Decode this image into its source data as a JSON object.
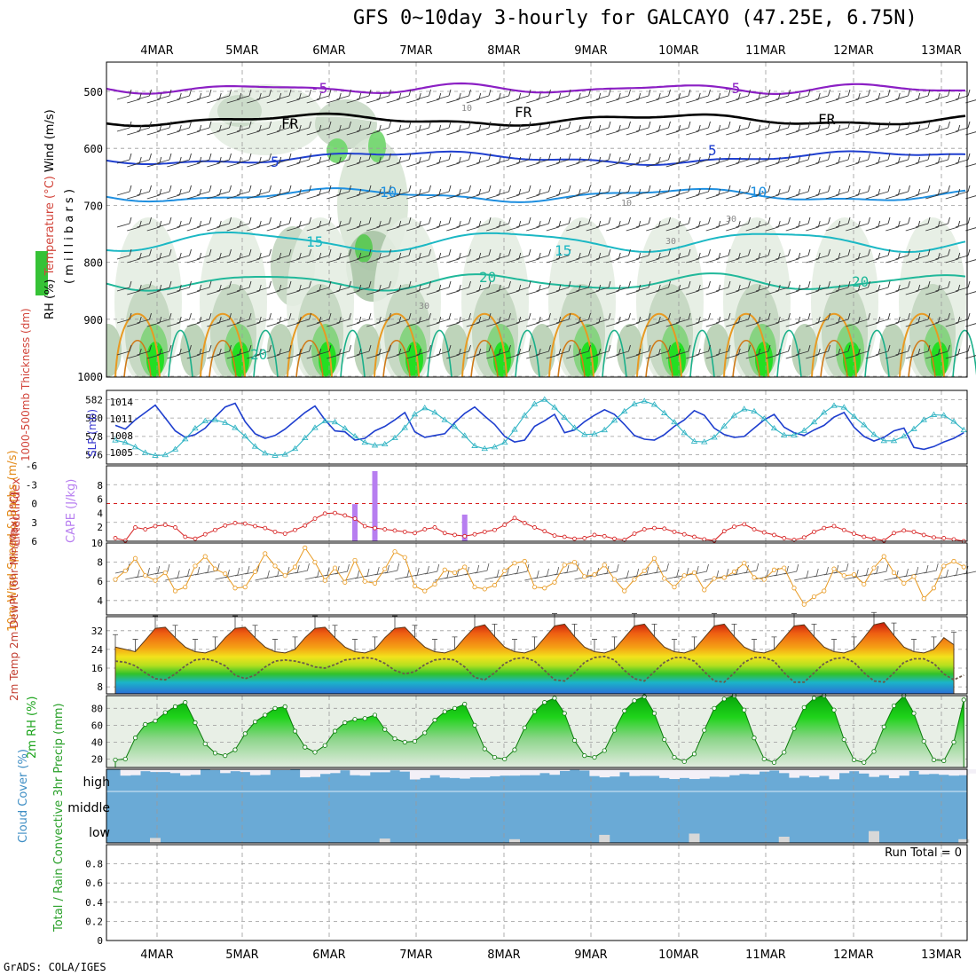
{
  "title": "GFS 0~10day 3-hourly for GALCAYO (47.25E, 6.75N)",
  "credit": "GrADS: COLA/IGES",
  "dates": [
    "4MAR",
    "5MAR",
    "6MAR",
    "7MAR",
    "8MAR",
    "9MAR",
    "10MAR",
    "11MAR",
    "12MAR",
    "13MAR"
  ],
  "colors": {
    "grid": "#9a9a9a",
    "purple": "#8b1fc4",
    "blue": "#1f3fcf",
    "cyan": "#2fb3c3",
    "orange": "#e89a22",
    "green": "#22c21f",
    "red": "#d62020",
    "cloud": "#6aaad6"
  },
  "panels": {
    "upper": {
      "ylabel_mb": "( m i l l i b a r s )",
      "label_wind": "Wind (m/s)",
      "label_temp": "Temperature (°C)",
      "label_rh": "RH (%)",
      "yticks": [
        "500",
        "600",
        "700",
        "800",
        "900",
        "1000"
      ],
      "contour_labels": {
        "t500": "-5",
        "t600": "5",
        "t700": "10",
        "t800": "15",
        "t850": "20",
        "t950": "20",
        "fr": "FR",
        "rh1": "10",
        "rh2": "30"
      }
    },
    "slp": {
      "label_thk": "1000-500mb Thickness (dm)",
      "label_slp": "SLP (mb)",
      "thk_ticks": [
        "582",
        "580",
        "578",
        "576"
      ],
      "slp_ticks": [
        "1014",
        "1011",
        "1008",
        "1005"
      ]
    },
    "cape": {
      "label_li": "Lifted Index",
      "label_cape": "CAPE (J/kg)",
      "li_ticks": [
        "-6",
        "-3",
        "0",
        "3",
        "6"
      ],
      "cape_ticks": [
        "8",
        "6",
        "4",
        "2"
      ]
    },
    "wind": {
      "label": "10m Wind Speed & Barbs (m/s)",
      "yticks": [
        "10",
        "8",
        "6",
        "4"
      ]
    },
    "temp": {
      "label": "2m Temp 2m DewPt (6hr Min/Max) (°C)",
      "yticks": [
        "32",
        "24",
        "16",
        "8"
      ]
    },
    "rh": {
      "label": "2m RH (%)",
      "yticks": [
        "80",
        "60",
        "40",
        "20"
      ]
    },
    "cloud": {
      "label": "Cloud Cover (%)",
      "levels": [
        "high",
        "middle",
        "low"
      ]
    },
    "precip": {
      "label": "Total / Rain Convective 3hr Precip (mm)",
      "run_total": "Run Total = 0",
      "yticks": [
        "0.8",
        "0.6",
        "0.4",
        "0.2",
        "0"
      ]
    }
  },
  "chart_data": [
    {
      "type": "line",
      "title": "1000-500mb Thickness (dm)",
      "ylim": [
        575,
        583
      ],
      "x_start": "3MAR 15Z",
      "x_step_hours": 3,
      "values": [
        579.2,
        578.8,
        579.8,
        580.6,
        581.4,
        580.0,
        578.6,
        577.9,
        578.2,
        578.9,
        580.1,
        581.2,
        581.6,
        579.6,
        578.3,
        577.8,
        578.1,
        578.8,
        579.7,
        580.6,
        581.3,
        579.8,
        578.6,
        578.5,
        577.6,
        577.8,
        578.6,
        579.1,
        579.8,
        580.6,
        578.5,
        577.9,
        578.1,
        578.3,
        579.5,
        580.5,
        581.2,
        580.2,
        579.3,
        578.0,
        577.4,
        577.6,
        579.1,
        579.7,
        580.4,
        578.4,
        578.7,
        579.6,
        580.3,
        580.9,
        580.4,
        579.3,
        578.1,
        577.7,
        577.6,
        578.2,
        579.1,
        579.8,
        580.8,
        580.3,
        578.9,
        578.2,
        577.9,
        578.0,
        578.9,
        579.8,
        580.4,
        579.0,
        578.4,
        578.1,
        578.7,
        579.2,
        580.1,
        580.6,
        579.0,
        578.0,
        577.5,
        577.9,
        578.6,
        578.9,
        576.8,
        576.6,
        576.9,
        577.4,
        577.8,
        578.4
      ]
    },
    {
      "type": "line",
      "title": "SLP (mb)",
      "ylim": [
        1003,
        1016
      ],
      "values": [
        1007.2,
        1006.8,
        1006.0,
        1005.0,
        1004.5,
        1004.6,
        1005.6,
        1007.4,
        1009.3,
        1010.6,
        1010.8,
        1010.3,
        1009.4,
        1007.9,
        1006.1,
        1004.9,
        1004.5,
        1004.7,
        1005.7,
        1007.6,
        1009.4,
        1010.6,
        1010.4,
        1009.3,
        1007.9,
        1006.8,
        1006.3,
        1006.5,
        1007.6,
        1009.4,
        1011.8,
        1012.9,
        1012.1,
        1010.8,
        1009.6,
        1008.0,
        1006.2,
        1005.7,
        1006.0,
        1006.8,
        1009.1,
        1011.6,
        1013.6,
        1014.4,
        1013.0,
        1011.2,
        1009.4,
        1008.2,
        1008.3,
        1009.0,
        1010.7,
        1012.3,
        1013.6,
        1014.1,
        1013.5,
        1012.0,
        1010.4,
        1008.5,
        1007.0,
        1006.9,
        1007.7,
        1009.7,
        1011.6,
        1012.7,
        1012.3,
        1011.0,
        1009.3,
        1008.1,
        1008.1,
        1008.9,
        1010.4,
        1012.1,
        1013.3,
        1013.0,
        1011.4,
        1009.9,
        1008.2,
        1007.1,
        1007.1,
        1007.9,
        1009.2,
        1010.8,
        1011.7,
        1011.6,
        1010.5,
        1009.0
      ]
    },
    {
      "type": "line",
      "title": "Lifted Index",
      "ylim": [
        6,
        -6
      ],
      "values": [
        5.5,
        5.9,
        3.8,
        4.1,
        3.6,
        3.4,
        3.8,
        5.3,
        5.6,
        4.9,
        4.2,
        3.5,
        3.1,
        3.2,
        3.6,
        3.9,
        4.5,
        4.8,
        4.2,
        3.5,
        2.4,
        1.6,
        1.5,
        1.9,
        2.4,
        3.6,
        3.9,
        4.1,
        4.3,
        4.5,
        4.7,
        4.1,
        3.8,
        4.7,
        5.0,
        5.2,
        4.9,
        4.5,
        4.2,
        3.4,
        2.3,
        3.1,
        3.8,
        4.4,
        5.1,
        5.3,
        5.6,
        5.5,
        5.0,
        5.2,
        5.6,
        5.8,
        4.8,
        4.1,
        3.9,
        4.0,
        4.5,
        4.9,
        5.3,
        5.7,
        5.9,
        4.4,
        3.7,
        3.3,
        4.1,
        4.6,
        5.0,
        5.5,
        5.8,
        5.4,
        4.5,
        3.9,
        3.6,
        4.2,
        4.8,
        5.3,
        5.6,
        5.9,
        4.7,
        4.3,
        4.5,
        5.0,
        5.4,
        5.5,
        5.7,
        6.0
      ]
    },
    {
      "type": "bar",
      "title": "CAPE (J/kg)",
      "ylim": [
        0,
        10
      ],
      "bars": [
        {
          "index": 24,
          "value": 5.3
        },
        {
          "index": 26,
          "value": 10.0
        },
        {
          "index": 35,
          "value": 3.8
        }
      ]
    },
    {
      "type": "line",
      "title": "10m Wind Speed (m/s)",
      "ylim": [
        2.5,
        10
      ],
      "values": [
        6.2,
        7.1,
        8.4,
        6.6,
        6.1,
        6.9,
        5.0,
        5.4,
        7.6,
        8.6,
        7.3,
        6.8,
        5.3,
        5.4,
        7.0,
        8.9,
        7.6,
        6.6,
        7.5,
        9.5,
        8.0,
        6.1,
        7.4,
        5.9,
        8.2,
        6.0,
        5.8,
        7.3,
        9.1,
        8.5,
        5.5,
        5.0,
        5.7,
        7.2,
        6.9,
        7.5,
        5.4,
        5.2,
        5.6,
        7.1,
        7.9,
        8.1,
        5.4,
        5.3,
        5.9,
        7.7,
        8.0,
        6.5,
        6.7,
        7.7,
        6.2,
        5.0,
        6.2,
        7.1,
        8.4,
        6.3,
        5.4,
        6.6,
        6.9,
        5.1,
        6.3,
        6.4,
        7.0,
        7.9,
        6.4,
        6.2,
        7.2,
        7.4,
        5.3,
        3.6,
        4.4,
        5.0,
        7.3,
        6.6,
        6.7,
        5.7,
        7.4,
        8.6,
        6.9,
        5.8,
        6.5,
        4.2,
        5.3,
        7.6,
        8.1,
        7.5
      ]
    },
    {
      "type": "area",
      "title": "2m Temp (°C)",
      "ylim": [
        5,
        38
      ],
      "values": [
        25.0,
        24.0,
        23.0,
        28.0,
        33.0,
        33.5,
        29.0,
        25.0,
        23.0,
        22.5,
        24.0,
        29.0,
        33.0,
        33.5,
        29.0,
        25.0,
        23.0,
        22.5,
        24.0,
        29.0,
        33.0,
        33.5,
        29.0,
        25.0,
        23.0,
        22.5,
        24.0,
        29.0,
        33.0,
        33.5,
        29.0,
        25.0,
        23.0,
        22.5,
        24.0,
        29.0,
        33.5,
        34.5,
        29.5,
        25.0,
        23.0,
        22.5,
        24.0,
        29.0,
        34.0,
        34.8,
        29.5,
        25.0,
        23.0,
        22.5,
        24.0,
        29.0,
        34.0,
        34.8,
        29.5,
        25.0,
        23.0,
        22.5,
        24.0,
        29.0,
        34.0,
        34.8,
        29.5,
        25.0,
        23.0,
        22.5,
        24.0,
        29.0,
        34.0,
        34.5,
        29.5,
        25.0,
        23.0,
        22.5,
        24.0,
        29.0,
        34.5,
        35.5,
        30.0,
        25.0,
        23.0,
        22.5,
        24.0,
        29.0,
        26.0
      ]
    },
    {
      "type": "line",
      "title": "2m DewPt (°C)",
      "values": [
        19.0,
        18.5,
        17.0,
        14.0,
        11.5,
        11.0,
        13.5,
        17.0,
        19.5,
        20.0,
        19.0,
        17.0,
        13.0,
        11.5,
        13.0,
        16.5,
        19.0,
        19.5,
        19.0,
        18.0,
        16.5,
        16.0,
        17.5,
        19.5,
        20.0,
        20.5,
        20.0,
        18.0,
        15.0,
        13.5,
        14.5,
        17.5,
        19.5,
        20.0,
        19.5,
        16.5,
        12.0,
        11.0,
        14.0,
        18.0,
        20.0,
        20.5,
        19.0,
        15.0,
        11.0,
        10.5,
        14.0,
        18.5,
        20.5,
        21.0,
        19.5,
        15.0,
        11.5,
        10.5,
        14.5,
        18.5,
        20.5,
        20.5,
        19.0,
        14.5,
        10.5,
        10.0,
        14.0,
        18.5,
        20.5,
        20.5,
        19.0,
        14.0,
        10.0,
        10.0,
        14.0,
        18.0,
        20.0,
        20.5,
        18.5,
        14.0,
        10.5,
        10.0,
        14.0,
        18.5,
        20.0,
        20.0,
        18.0,
        13.5,
        11.0,
        13.0
      ]
    },
    {
      "type": "area",
      "title": "2m RH (%)",
      "ylim": [
        10,
        95
      ],
      "values": [
        19,
        20,
        45,
        61,
        65,
        75,
        82,
        87,
        63,
        38,
        27,
        24,
        31,
        50,
        64,
        72,
        80,
        82,
        53,
        34,
        28,
        36,
        53,
        63,
        67,
        68,
        72,
        55,
        44,
        40,
        41,
        51,
        66,
        76,
        80,
        85,
        60,
        32,
        22,
        20,
        31,
        57,
        76,
        87,
        92,
        74,
        42,
        24,
        22,
        30,
        54,
        77,
        89,
        94,
        74,
        43,
        22,
        17,
        26,
        54,
        80,
        91,
        95,
        78,
        45,
        20,
        16,
        28,
        56,
        81,
        92,
        95,
        78,
        43,
        19,
        16,
        29,
        58,
        83,
        95,
        74,
        41,
        19,
        18,
        40,
        90
      ]
    },
    {
      "type": "bar",
      "title": "Cloud Cover high (%)",
      "values": [
        100,
        70,
        72,
        91,
        87,
        87,
        82,
        70,
        74,
        100,
        96,
        82,
        91,
        87,
        72,
        74,
        96,
        96,
        100,
        62,
        64,
        78,
        82,
        95,
        72,
        70,
        86,
        86,
        95,
        89,
        52,
        59,
        72,
        61,
        59,
        56,
        62,
        62,
        67,
        70,
        70,
        72,
        72,
        82,
        74,
        92,
        97,
        94,
        68,
        62,
        66,
        86,
        68,
        69,
        69,
        59,
        54,
        59,
        54,
        56,
        65,
        64,
        72,
        78,
        76,
        89,
        94,
        82,
        60,
        69,
        62,
        69,
        53,
        82,
        91,
        80,
        64,
        72,
        58,
        70,
        92,
        76,
        78,
        74,
        70,
        72,
        80
      ]
    },
    {
      "type": "bar",
      "title": "Cloud Cover low (%)",
      "bars": [
        {
          "index": 4,
          "value": 8
        },
        {
          "index": 27,
          "value": 7
        },
        {
          "index": 40,
          "value": 6
        },
        {
          "index": 49,
          "value": 13
        },
        {
          "index": 58,
          "value": 15
        },
        {
          "index": 67,
          "value": 10
        },
        {
          "index": 76,
          "value": 19
        },
        {
          "index": 85,
          "value": 6
        }
      ]
    },
    {
      "type": "bar",
      "title": "3hr Precip (mm)",
      "ylim": [
        0,
        1
      ],
      "values": []
    }
  ]
}
